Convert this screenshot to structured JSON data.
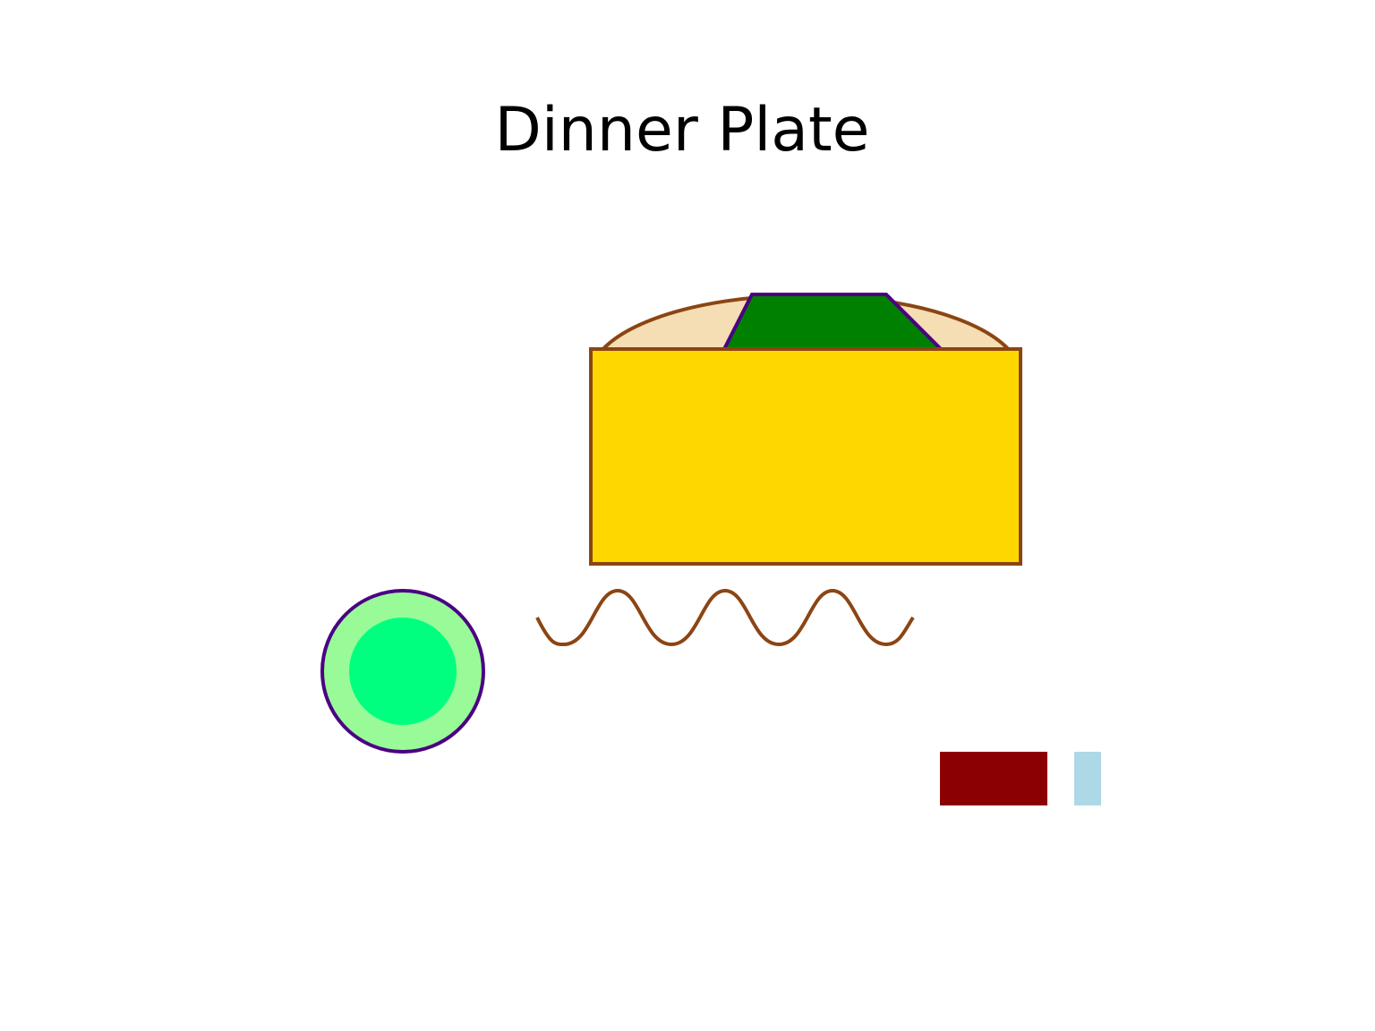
{
  "title": "Dinner Plate",
  "colors": {
    "background": "#ffffff",
    "bread_fill": "#F5DEB3",
    "bread_stroke": "#8B4513",
    "lettuce_fill": "#008000",
    "lettuce_stroke": "#4B0082",
    "cheese_fill": "#FFD700",
    "cheese_stroke": "#8B4513",
    "sauce_stroke": "#8B4513",
    "cup_outer_fill": "#98FB98",
    "cup_stroke": "#4B0082",
    "cup_inner_fill": "#00FF7F",
    "knife_fill": "#8B0000",
    "fork_fill": "#ADD8E6"
  }
}
